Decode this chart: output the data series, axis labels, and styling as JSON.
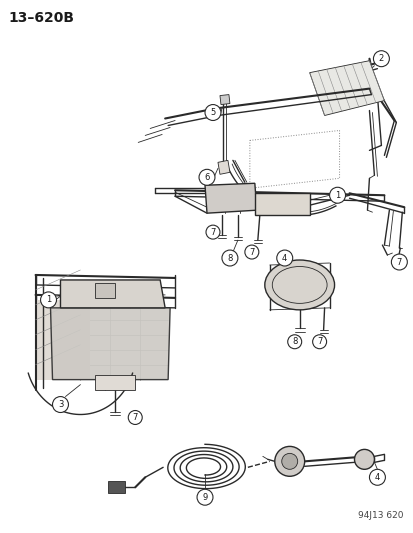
{
  "title": "13–620B",
  "part_number": "94J13 620",
  "bg": "#f5f5f0",
  "lc": "#2a2a2a",
  "tc": "#1a1a1a",
  "figsize": [
    4.14,
    5.33
  ],
  "dpi": 100,
  "gray": "#888888",
  "lgray": "#cccccc",
  "hatch_color": "#aaaaaa"
}
